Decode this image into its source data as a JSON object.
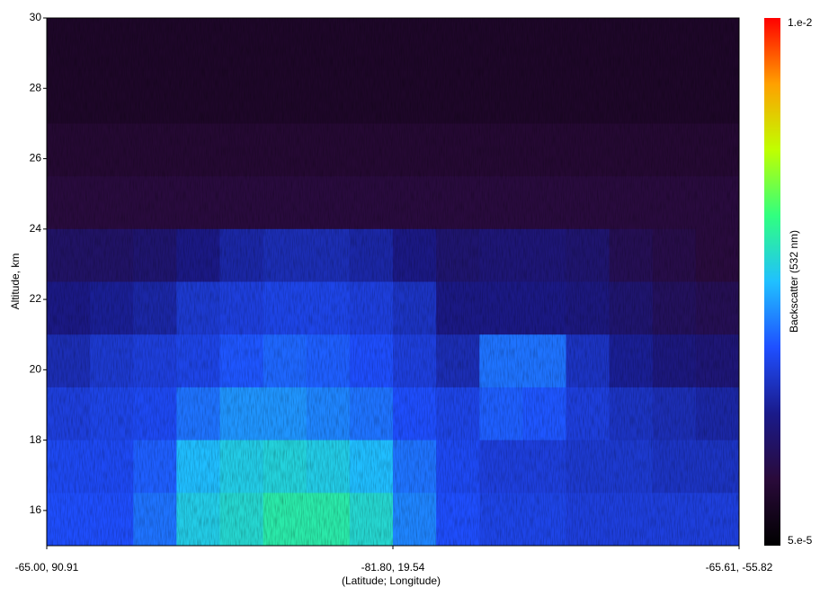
{
  "chart_data": {
    "type": "heatmap",
    "ylabel": "Altitude, km",
    "xlabel": "(Latitude; Longitude)",
    "xticklabels": [
      "-65.00,  90.91",
      "-81.80,  19.54",
      "-65.61, -55.82"
    ],
    "ylim": [
      15,
      30
    ],
    "yticks": [
      16,
      18,
      20,
      22,
      24,
      26,
      28,
      30
    ],
    "colorbar_label": "Backscatter (532 nm)",
    "zlim": [
      {
        "value": 5e-05,
        "label": "5.e-5"
      },
      {
        "value": 0.01,
        "label": "1.e-2"
      }
    ],
    "zscale": "log",
    "colormap": [
      "#000000",
      "#2a0a3a",
      "#1a1a8a",
      "#1f4fff",
      "#20c0ff",
      "#30ff80",
      "#c0ff00",
      "#ffa000",
      "#ff0000"
    ],
    "z": [
      [
        8e-05,
        8e-05,
        8e-05,
        8e-05,
        8e-05,
        8e-05,
        8e-05,
        8e-05,
        8e-05,
        8e-05,
        8e-05,
        8e-05,
        8e-05,
        8e-05,
        8e-05,
        8e-05
      ],
      [
        8e-05,
        8e-05,
        8e-05,
        8e-05,
        8e-05,
        8e-05,
        8e-05,
        8e-05,
        8e-05,
        8e-05,
        8e-05,
        8e-05,
        8e-05,
        8e-05,
        8e-05,
        8e-05
      ],
      [
        9e-05,
        9e-05,
        9e-05,
        9e-05,
        9e-05,
        9e-05,
        9e-05,
        9e-05,
        9e-05,
        9e-05,
        9e-05,
        9e-05,
        9e-05,
        9e-05,
        9e-05,
        9e-05
      ],
      [
        0.0001,
        0.0001,
        0.0001,
        0.0001,
        0.0001,
        0.0001,
        0.0001,
        0.0001,
        0.0001,
        0.0001,
        0.0001,
        0.0001,
        0.0001,
        0.0001,
        0.0001,
        0.0001
      ],
      [
        0.00014,
        0.00014,
        0.00015,
        0.00018,
        0.00022,
        0.00024,
        0.00024,
        0.00022,
        0.00018,
        0.00015,
        0.00016,
        0.00016,
        0.00015,
        0.00012,
        0.00011,
        0.0001
      ],
      [
        0.00018,
        0.0002,
        0.00022,
        0.00028,
        0.0003,
        0.00032,
        0.00032,
        0.0003,
        0.00026,
        0.00018,
        0.00018,
        0.00018,
        0.00017,
        0.00015,
        0.00013,
        0.00012
      ],
      [
        0.00024,
        0.00028,
        0.0003,
        0.00032,
        0.00038,
        0.00042,
        0.0004,
        0.00036,
        0.0003,
        0.00024,
        0.00045,
        0.00045,
        0.00026,
        0.0002,
        0.00017,
        0.00016
      ],
      [
        0.0003,
        0.00032,
        0.00034,
        0.00045,
        0.00055,
        0.00055,
        0.0005,
        0.00045,
        0.00036,
        0.00032,
        0.0004,
        0.00038,
        0.0003,
        0.00026,
        0.00024,
        0.00022
      ],
      [
        0.00034,
        0.00034,
        0.0004,
        0.0007,
        0.0008,
        0.00085,
        0.0008,
        0.0007,
        0.00045,
        0.00034,
        0.0003,
        0.0003,
        0.00028,
        0.00028,
        0.00026,
        0.00026
      ],
      [
        0.00036,
        0.00036,
        0.00045,
        0.0008,
        0.0009,
        0.0011,
        0.0011,
        0.0009,
        0.0005,
        0.00036,
        0.00032,
        0.00032,
        0.0003,
        0.0003,
        0.0003,
        0.0003
      ]
    ]
  }
}
